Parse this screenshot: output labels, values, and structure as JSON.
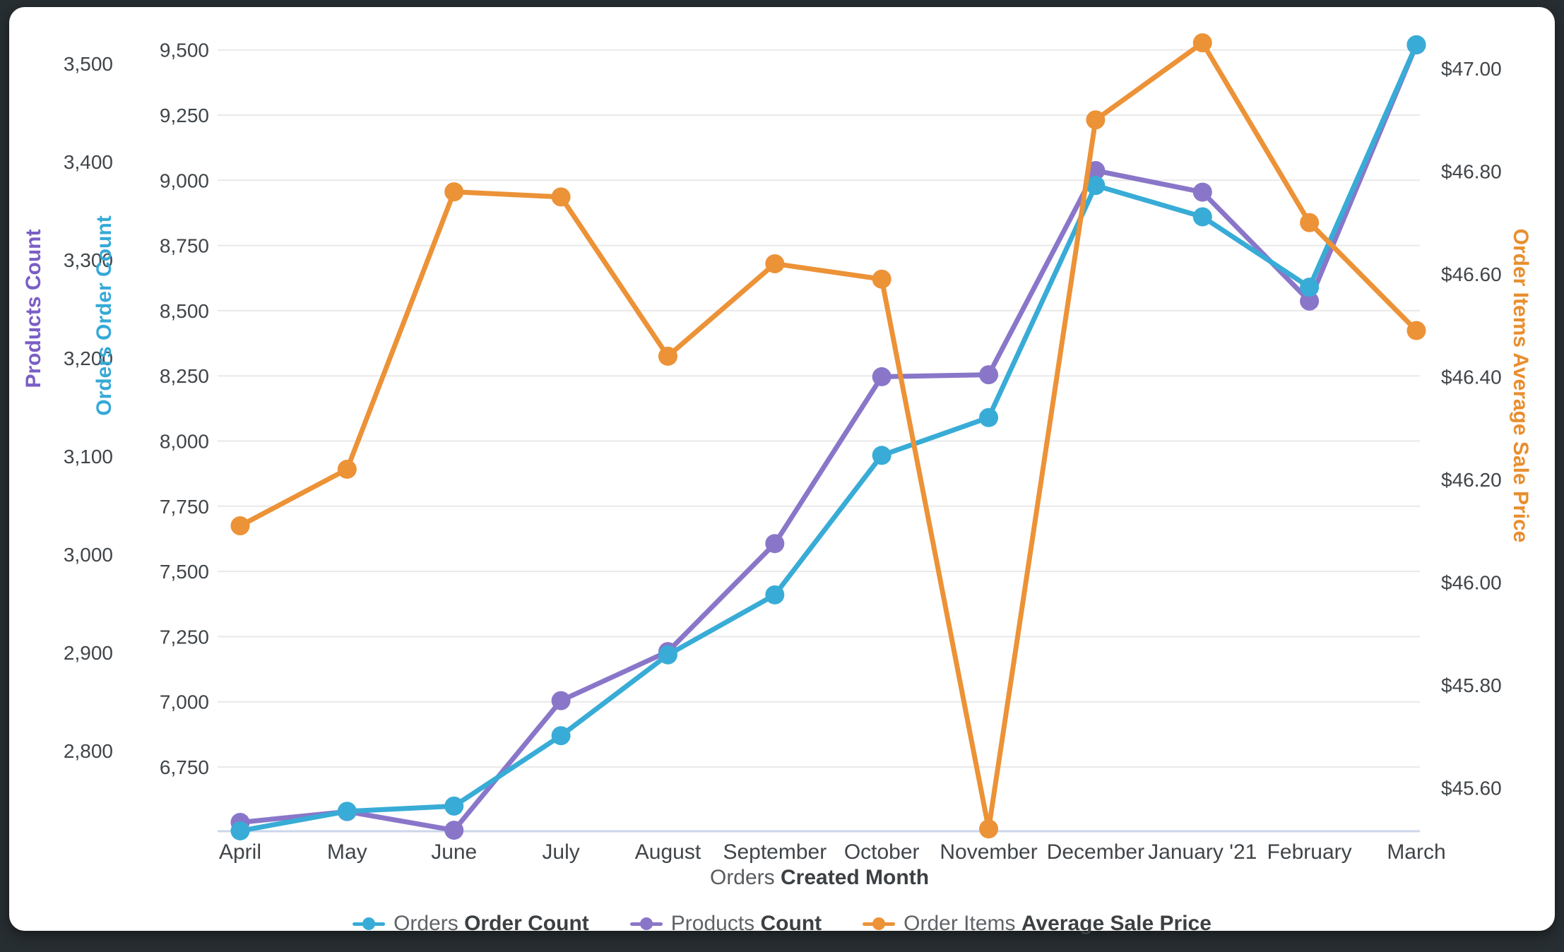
{
  "axes_titles": {
    "products": "Products Count",
    "orders": "Orders Order Count",
    "price": "Order Items Average Sale Price"
  },
  "x_axis_title": {
    "regular": "Orders",
    "bold": "Created Month"
  },
  "legend": [
    {
      "regular": "Orders",
      "bold": "Order Count",
      "color": "#38acd6"
    },
    {
      "regular": "Products",
      "bold": "Count",
      "color": "#8a76c9"
    },
    {
      "regular": "Order Items",
      "bold": "Average Sale Price",
      "color": "#ec9237"
    }
  ],
  "colors": {
    "orders_series": "#38acd6",
    "products_series": "#8a76c9",
    "price_series": "#ec9237",
    "orders_axis_title": "#35a9d6",
    "products_axis_title": "#7a5ec5",
    "price_axis_title": "#e88e2e",
    "tick_text": "#404549",
    "gridline": "#e9e9e9",
    "baseline": "#ccd6ea",
    "card_background": "#ffffff",
    "frame_background": "#272e32"
  },
  "chart_data": {
    "type": "line",
    "categories": [
      "April",
      "May",
      "June",
      "July",
      "August",
      "September",
      "October",
      "November",
      "December",
      "January '21",
      "February",
      "March"
    ],
    "series": [
      {
        "name": "Products Count",
        "axis": "products",
        "color": "#8a76c9",
        "values": [
          2727,
          2738,
          2719,
          2851,
          2901,
          3011,
          3181,
          3183,
          3391,
          3369,
          3258,
          3519
        ]
      },
      {
        "name": "Orders Order Count",
        "axis": "orders",
        "color": "#38acd6",
        "values": [
          6505,
          6580,
          6600,
          6870,
          7180,
          7410,
          7945,
          8090,
          8980,
          8860,
          8590,
          9520
        ]
      },
      {
        "name": "Order Items Average Sale Price",
        "axis": "price",
        "color": "#ec9237",
        "values": [
          46.11,
          46.22,
          46.76,
          46.75,
          46.44,
          46.62,
          46.59,
          45.52,
          46.9,
          47.05,
          46.7,
          46.49
        ]
      }
    ],
    "axes": {
      "products": {
        "ticks": [
          2800,
          2900,
          3000,
          3100,
          3200,
          3300,
          3400,
          3500
        ],
        "min": 2719,
        "max": 3520,
        "format": "count"
      },
      "orders": {
        "ticks": [
          6750,
          7000,
          7250,
          7500,
          7750,
          8000,
          8250,
          8500,
          8750,
          9000,
          9250,
          9500
        ],
        "min": 6505,
        "max": 9550,
        "format": "count",
        "gridlines": true
      },
      "price": {
        "ticks": [
          45.6,
          45.8,
          46.0,
          46.2,
          46.4,
          46.6,
          46.8,
          47.0
        ],
        "min": 45.52,
        "max": 47.06,
        "format": "dollar"
      }
    },
    "title": "",
    "xlabel": "Orders Created Month",
    "legend_position": "bottom",
    "grid": "horizontal-only"
  }
}
